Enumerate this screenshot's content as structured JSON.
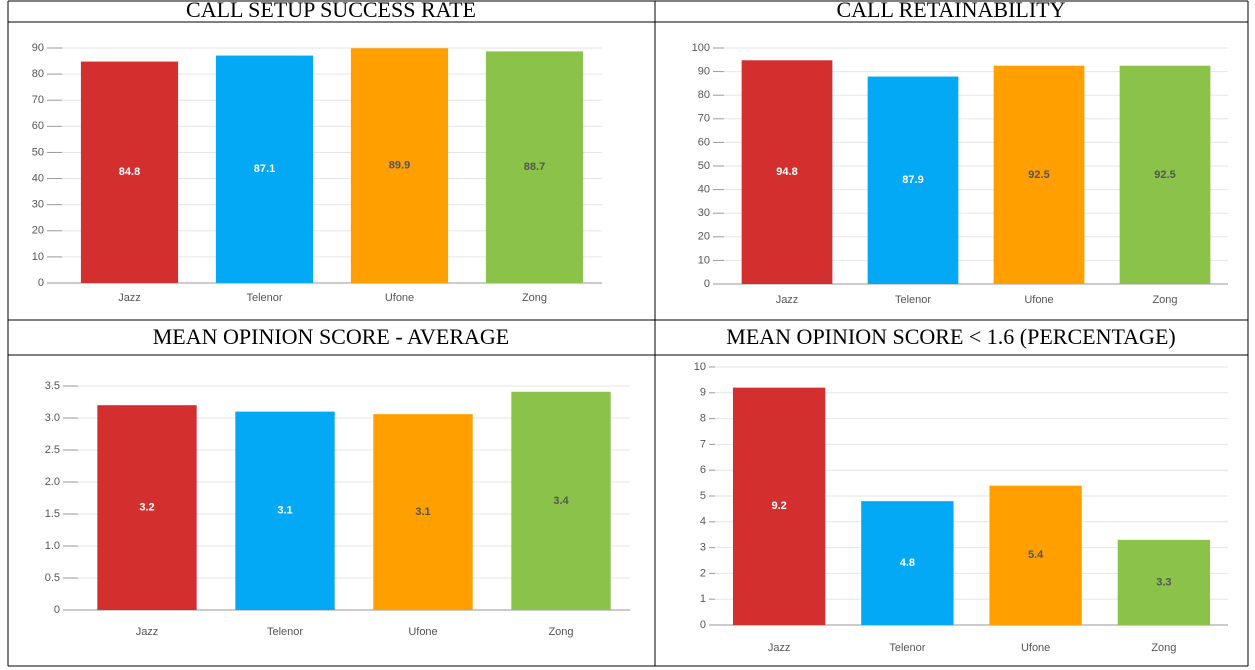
{
  "chart_data": [
    {
      "type": "bar",
      "title": "CALL SETUP SUCCESS RATE",
      "categories": [
        "Jazz",
        "Telenor",
        "Ufone",
        "Zong"
      ],
      "values": [
        84.8,
        87.1,
        89.9,
        88.7
      ],
      "colors": [
        "#d32f2f",
        "#03a9f4",
        "#ff9f00",
        "#8bc34a"
      ],
      "ylim": [
        0,
        90
      ],
      "yticks": [
        0,
        10,
        20,
        30,
        40,
        50,
        60,
        70,
        80,
        90
      ],
      "grid": true
    },
    {
      "type": "bar",
      "title": "CALL RETAINABILITY",
      "categories": [
        "Jazz",
        "Telenor",
        "Ufone",
        "Zong"
      ],
      "values": [
        94.8,
        87.9,
        92.5,
        92.5
      ],
      "colors": [
        "#d32f2f",
        "#03a9f4",
        "#ff9f00",
        "#8bc34a"
      ],
      "ylim": [
        0,
        100
      ],
      "yticks": [
        0,
        10,
        20,
        30,
        40,
        50,
        60,
        70,
        80,
        90,
        100
      ],
      "grid": true
    },
    {
      "type": "bar",
      "title": "MEAN OPINION SCORE - AVERAGE",
      "categories": [
        "Jazz",
        "Telenor",
        "Ufone",
        "Zong"
      ],
      "values": [
        3.2,
        3.1,
        3.06,
        3.41
      ],
      "value_labels": [
        "3.2",
        "3.1",
        "3.1",
        "3.4"
      ],
      "colors": [
        "#d32f2f",
        "#03a9f4",
        "#ff9f00",
        "#8bc34a"
      ],
      "ylim": [
        0,
        3.5
      ],
      "yticks": [
        0,
        0.5,
        {
          "value": 1,
          "label": "1.0"
        },
        1.5,
        {
          "value": 2,
          "label": "2.0"
        },
        2.5,
        {
          "value": 3,
          "label": "3.0"
        },
        3.5
      ],
      "grid": true
    },
    {
      "type": "bar",
      "title": "MEAN OPINION SCORE < 1.6 (PERCENTAGE)",
      "categories": [
        "Jazz",
        "Telenor",
        "Ufone",
        "Zong"
      ],
      "values": [
        9.2,
        4.8,
        5.4,
        3.3
      ],
      "colors": [
        "#d32f2f",
        "#03a9f4",
        "#ff9f00",
        "#8bc34a"
      ],
      "ylim": [
        0,
        10
      ],
      "yticks": [
        0,
        1,
        2,
        3,
        4,
        5,
        6,
        7,
        8,
        9,
        10
      ],
      "grid": true
    }
  ]
}
